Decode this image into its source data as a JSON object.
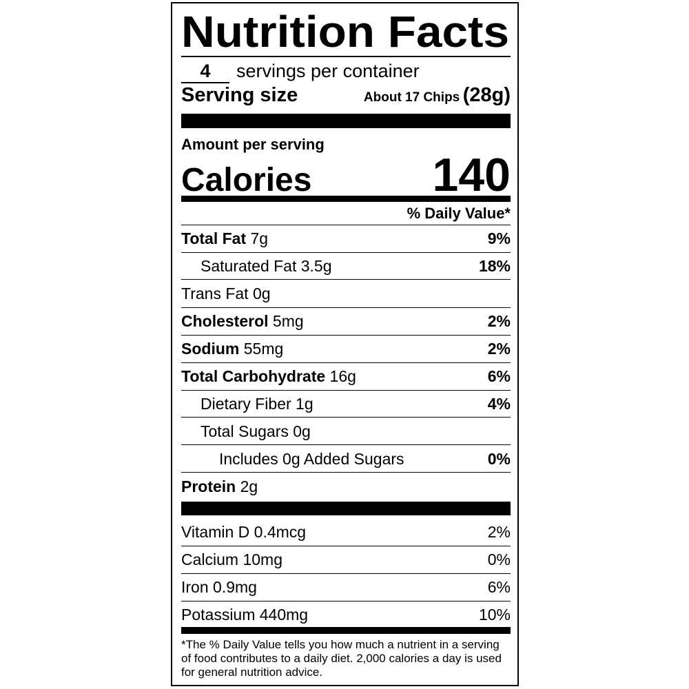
{
  "header": {
    "title": "Nutrition Facts",
    "servings_count": "4",
    "servings_text": "servings per container",
    "serving_size_label": "Serving size",
    "serving_size_detail": "About 17 Chips",
    "serving_size_weight": "(28g)"
  },
  "calories": {
    "amount_label": "Amount per serving",
    "label": "Calories",
    "value": "140"
  },
  "daily_value_header": "% Daily Value*",
  "nutrients": [
    {
      "name": "Total Fat",
      "amount": "7g",
      "dv": "9%"
    },
    {
      "name": "Saturated Fat",
      "amount": "3.5g",
      "dv": "18%"
    },
    {
      "name": "Trans Fat",
      "amount": "0g"
    },
    {
      "name": "Cholesterol",
      "amount": "5mg",
      "dv": "2%"
    },
    {
      "name": "Sodium",
      "amount": "55mg",
      "dv": "2%"
    },
    {
      "name": "Total Carbohydrate",
      "amount": "16g",
      "dv": "6%"
    },
    {
      "name": "Dietary Fiber",
      "amount": "1g",
      "dv": "4%"
    },
    {
      "name": "Total Sugars",
      "amount": "0g"
    },
    {
      "name": "Includes 0g Added Sugars",
      "dv": "0%"
    },
    {
      "name": "Protein",
      "amount": "2g"
    }
  ],
  "vitamins": [
    {
      "name": "Vitamin D",
      "amount": "0.4mcg",
      "dv": "2%"
    },
    {
      "name": "Calcium",
      "amount": "10mg",
      "dv": "0%"
    },
    {
      "name": "Iron",
      "amount": "0.9mg",
      "dv": "6%"
    },
    {
      "name": "Potassium",
      "amount": "440mg",
      "dv": "10%"
    }
  ],
  "footnote": "*The % Daily Value tells you how much a nutrient in a serving of food contributes to a daily diet. 2,000 calories a day is used for general nutrition advice."
}
